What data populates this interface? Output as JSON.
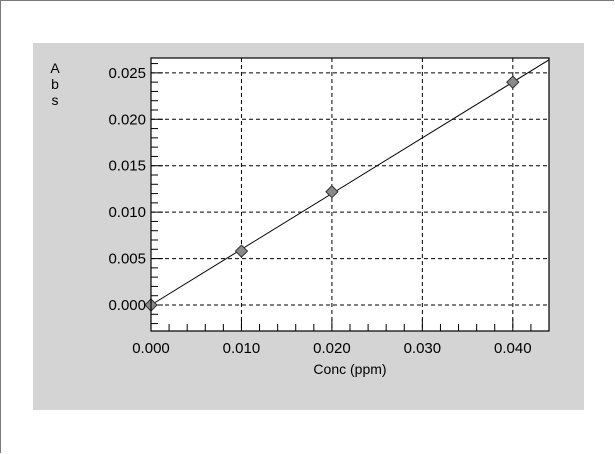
{
  "chart_data": {
    "type": "scatter",
    "xlabel": "Conc (ppm)",
    "ylabel": "Abs",
    "ylabel_letters": [
      "A",
      "b",
      "s"
    ],
    "xlim": [
      0,
      0.044
    ],
    "ylim": [
      -0.0028,
      0.0266
    ],
    "x_ticks": [
      {
        "value": 0.0,
        "label": "0.000"
      },
      {
        "value": 0.01,
        "label": "0.010"
      },
      {
        "value": 0.02,
        "label": "0.020"
      },
      {
        "value": 0.03,
        "label": "0.030"
      },
      {
        "value": 0.04,
        "label": "0.040"
      }
    ],
    "y_ticks": [
      {
        "value": 0.0,
        "label": "0.000"
      },
      {
        "value": 0.005,
        "label": "0.005"
      },
      {
        "value": 0.01,
        "label": "0.010"
      },
      {
        "value": 0.015,
        "label": "0.015"
      },
      {
        "value": 0.02,
        "label": "0.020"
      },
      {
        "value": 0.025,
        "label": "0.025"
      }
    ],
    "x_minor_step": 0.002,
    "y_minor_step": 0.001,
    "grid": true,
    "series": [
      {
        "points": [
          {
            "x": 0.0,
            "y": 0.0
          },
          {
            "x": 0.01,
            "y": 0.0058
          },
          {
            "x": 0.02,
            "y": 0.0122
          },
          {
            "x": 0.04,
            "y": 0.024
          }
        ],
        "marker": "diamond",
        "marker_color": "#8a8a8a"
      }
    ],
    "fit_line": {
      "x": [
        0.0,
        0.044
      ],
      "y": [
        0.0,
        0.0264
      ]
    },
    "colors": {
      "panel": "#d4d4d4",
      "plot_bg": "#ffffff",
      "grid": "#000000",
      "line": "#000000"
    }
  }
}
